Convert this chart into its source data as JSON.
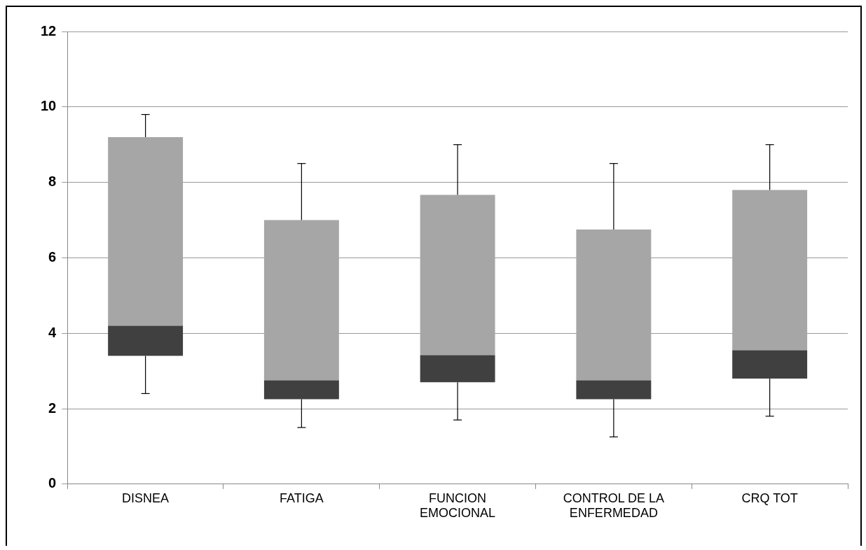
{
  "chart_data": {
    "type": "box",
    "categories": [
      "DISNEA",
      "FATIGA",
      "FUNCION EMOCIONAL",
      "CONTROL DE LA ENFERMEDAD",
      "CRQ TOT"
    ],
    "series": [
      {
        "colors": [
          [
            "#404040",
            "#a6a6a6"
          ],
          [
            "#404040",
            "#a6a6a6"
          ],
          [
            "#404040",
            "#a6a6a6"
          ],
          [
            "#404040",
            "#a6a6a6"
          ],
          [
            "#404040",
            "#a6a6a6"
          ]
        ],
        "boxes": [
          {
            "low": 2.4,
            "q1": 3.4,
            "median": 4.2,
            "q3": 9.2,
            "high": 9.8
          },
          {
            "low": 1.5,
            "q1": 2.25,
            "median": 2.75,
            "q3": 7.0,
            "high": 8.5
          },
          {
            "low": 1.7,
            "q1": 2.7,
            "median": 3.42,
            "q3": 7.67,
            "high": 9.0
          },
          {
            "low": 1.25,
            "q1": 2.25,
            "median": 2.75,
            "q3": 6.75,
            "high": 8.5
          },
          {
            "low": 1.8,
            "q1": 2.8,
            "median": 3.55,
            "q3": 7.8,
            "high": 9.0
          }
        ]
      }
    ],
    "ylim": [
      0,
      12
    ],
    "yticks": [
      0,
      2,
      4,
      6,
      8,
      10,
      12
    ],
    "grid": "y",
    "legend": false
  }
}
